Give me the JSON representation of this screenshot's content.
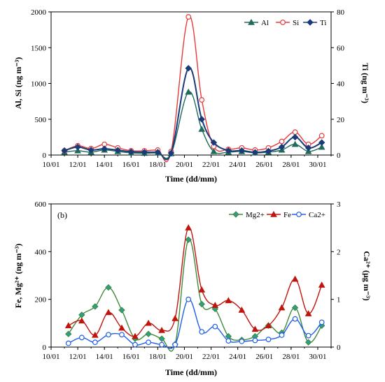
{
  "colors": {
    "Al": "#1f6b5c",
    "Si": "#e8393a",
    "Ti": "#1a3a7a",
    "Mg2+": "#3f8a3a",
    "Fe": "#c0140c",
    "Ca2+": "#1f5de8",
    "Mg_marker_fill": "#2e9e8c"
  },
  "chart_data": [
    {
      "type": "line",
      "panel_label": "",
      "xlabel": "Time (dd/mm)",
      "ylabel_left": "Al, Si (ng m⁻³)",
      "ylabel_right": "Ti (ng m⁻³)",
      "x_ticks": [
        "10/01",
        "12/01",
        "14/01",
        "16/01",
        "18/01",
        "20/01",
        "22/01",
        "24/01",
        "26/01",
        "28/01",
        "30/01"
      ],
      "xlim": [
        10,
        31
      ],
      "ylim_left": [
        0,
        2000
      ],
      "yticks_left": [
        "0",
        "500",
        "1000",
        "1500",
        "2000"
      ],
      "ylim_right": [
        0,
        80
      ],
      "yticks_right": [
        "0",
        "20",
        "40",
        "60",
        "80"
      ],
      "legend_position": "top-right",
      "x": [
        11,
        12,
        13,
        14,
        15,
        16,
        17,
        18,
        19,
        20.3,
        21.3,
        22.2,
        23.3,
        24.3,
        25.3,
        26.3,
        27.3,
        28.3,
        29.3,
        30.3
      ],
      "series": [
        {
          "name": "Al",
          "axis": "left",
          "marker": "triangle",
          "values": [
            40,
            60,
            40,
            70,
            50,
            30,
            25,
            30,
            20,
            880,
            360,
            50,
            40,
            50,
            30,
            40,
            70,
            150,
            50,
            110
          ]
        },
        {
          "name": "Si",
          "axis": "left",
          "marker": "circle",
          "values": [
            60,
            130,
            90,
            150,
            100,
            60,
            60,
            70,
            50,
            1930,
            770,
            120,
            80,
            100,
            70,
            100,
            190,
            320,
            150,
            270
          ]
        },
        {
          "name": "Ti",
          "axis": "right",
          "marker": "diamond",
          "values": [
            2.5,
            4.5,
            2.8,
            3.5,
            2.7,
            1.8,
            1.6,
            1.6,
            1.1,
            48.5,
            20,
            7,
            2.5,
            2.5,
            1.5,
            2.2,
            4.5,
            10,
            4,
            7
          ]
        }
      ]
    },
    {
      "type": "line",
      "panel_label": "(b)",
      "xlabel": "Time (dd/mm)",
      "ylabel_left": "Fe, Mg²⁺ (ng m⁻³)",
      "ylabel_right": "Ca²⁺ (μg m⁻³)",
      "x_ticks": [
        "10/01",
        "12/01",
        "14/01",
        "16/01",
        "18/01",
        "20/01",
        "22/01",
        "24/01",
        "26/01",
        "28/01",
        "30/01"
      ],
      "xlim": [
        10,
        31
      ],
      "ylim_left": [
        0,
        600
      ],
      "yticks_left": [
        "0",
        "200",
        "400",
        "600"
      ],
      "ylim_right": [
        0,
        3
      ],
      "yticks_right": [
        "0",
        "1",
        "2",
        "3"
      ],
      "legend_position": "top-right",
      "x": [
        11.3,
        12.3,
        13.3,
        14.3,
        15.3,
        16.3,
        17.3,
        18.3,
        19.3,
        20.3,
        21.3,
        22.3,
        23.3,
        24.3,
        25.3,
        26.3,
        27.3,
        28.3,
        29.3,
        30.3
      ],
      "series": [
        {
          "name": "Mg2+",
          "axis": "left",
          "marker": "diamond",
          "values": [
            55,
            135,
            170,
            250,
            155,
            35,
            55,
            35,
            12,
            450,
            180,
            160,
            45,
            30,
            45,
            90,
            60,
            165,
            20,
            90
          ]
        },
        {
          "name": "Fe",
          "axis": "left",
          "marker": "triangle",
          "values": [
            90,
            110,
            50,
            145,
            80,
            45,
            100,
            70,
            120,
            500,
            240,
            175,
            195,
            155,
            75,
            90,
            165,
            285,
            140,
            260
          ]
        },
        {
          "name": "Ca2+",
          "axis": "right",
          "marker": "circle",
          "values": [
            0.08,
            0.2,
            0.1,
            0.26,
            0.26,
            0.05,
            0.1,
            0.05,
            0.05,
            1.0,
            0.32,
            0.43,
            0.13,
            0.12,
            0.14,
            0.16,
            0.25,
            0.59,
            0.24,
            0.52
          ]
        }
      ]
    }
  ]
}
